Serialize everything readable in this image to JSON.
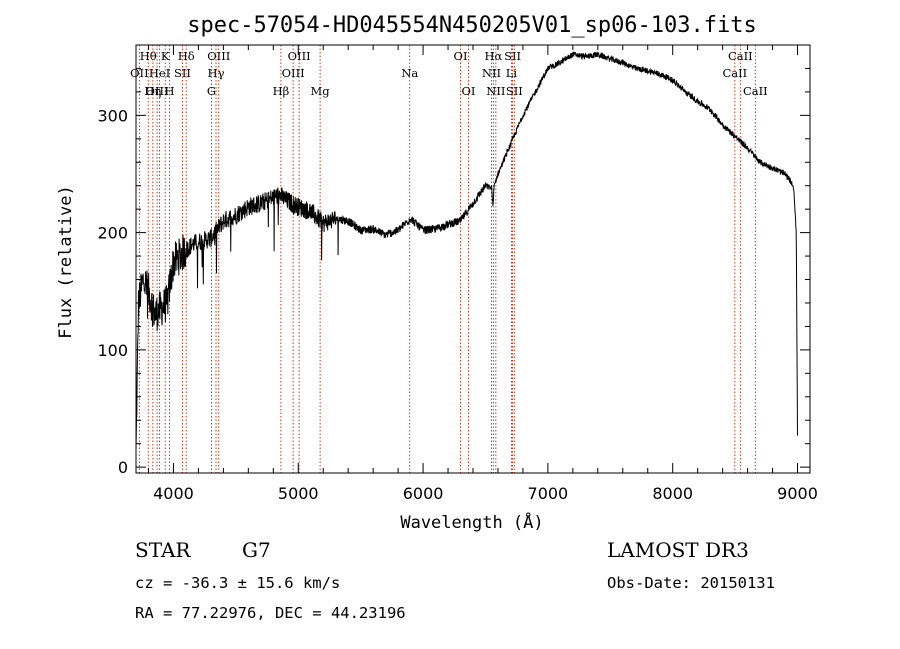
{
  "chart_data": {
    "type": "line",
    "title": "spec-57054-HD045554N450205V01_sp06-103.fits",
    "xlabel": "Wavelength (Å)",
    "ylabel": "Flux (relative)",
    "xlim": [
      3700,
      9100
    ],
    "ylim": [
      -5,
      360
    ],
    "xticks": [
      4000,
      5000,
      6000,
      7000,
      8000,
      9000
    ],
    "yticks": [
      0,
      100,
      200,
      300
    ],
    "grid": false,
    "series": [
      {
        "name": "spectrum",
        "x": [
          3700,
          3720,
          3760,
          3800,
          3850,
          3900,
          3950,
          4000,
          4050,
          4100,
          4150,
          4200,
          4300,
          4400,
          4500,
          4600,
          4700,
          4800,
          4850,
          4900,
          4950,
          5000,
          5100,
          5200,
          5300,
          5400,
          5500,
          5600,
          5700,
          5800,
          5900,
          6000,
          6100,
          6200,
          6300,
          6400,
          6500,
          6550,
          6560,
          6570,
          6600,
          6700,
          6800,
          6900,
          7000,
          7100,
          7200,
          7300,
          7400,
          7500,
          7600,
          7700,
          7800,
          7900,
          8000,
          8100,
          8200,
          8300,
          8400,
          8500,
          8600,
          8700,
          8800,
          8900,
          8950,
          8970,
          8990,
          9000
        ],
        "y": [
          10,
          140,
          160,
          150,
          130,
          135,
          140,
          175,
          180,
          185,
          190,
          192,
          195,
          210,
          215,
          222,
          225,
          230,
          232,
          228,
          225,
          222,
          218,
          208,
          212,
          210,
          202,
          203,
          198,
          202,
          212,
          202,
          203,
          207,
          210,
          225,
          240,
          238,
          222,
          240,
          250,
          275,
          300,
          320,
          340,
          345,
          352,
          350,
          352,
          348,
          345,
          340,
          338,
          335,
          330,
          320,
          312,
          305,
          292,
          282,
          272,
          260,
          255,
          250,
          243,
          238,
          200,
          25
        ]
      }
    ],
    "lines": [
      {
        "label": "Hθ",
        "x": 3798,
        "row": 1
      },
      {
        "label": "OII",
        "x": 3727,
        "row": 2
      },
      {
        "label": "OIII",
        "x": 3869,
        "row": 3
      },
      {
        "label": "HeI",
        "x": 3889,
        "row": 2
      },
      {
        "label": "Hη",
        "x": 3835,
        "row": 3
      },
      {
        "label": "K",
        "x": 3934,
        "row": 1
      },
      {
        "label": "SII",
        "x": 4072,
        "row": 2
      },
      {
        "label": "H",
        "x": 3969,
        "row": 3
      },
      {
        "label": "Hδ",
        "x": 4102,
        "row": 1
      },
      {
        "label": "OIII",
        "x": 4363,
        "row": 1
      },
      {
        "label": "Hγ",
        "x": 4341,
        "row": 2
      },
      {
        "label": "G",
        "x": 4305,
        "row": 3
      },
      {
        "label": "Hβ",
        "x": 4861,
        "row": 3
      },
      {
        "label": "OIII",
        "x": 5007,
        "row": 1
      },
      {
        "label": "OIII",
        "x": 4959,
        "row": 2
      },
      {
        "label": "Mg",
        "x": 5175,
        "row": 3
      },
      {
        "label": "Na",
        "x": 5893,
        "row": 2
      },
      {
        "label": "OI",
        "x": 6300,
        "row": 1
      },
      {
        "label": "OI",
        "x": 6364,
        "row": 3
      },
      {
        "label": "Hα",
        "x": 6563,
        "row": 1
      },
      {
        "label": "NII",
        "x": 6548,
        "row": 2
      },
      {
        "label": "NII",
        "x": 6583,
        "row": 3
      },
      {
        "label": "SII",
        "x": 6717,
        "row": 1
      },
      {
        "label": "Li",
        "x": 6708,
        "row": 2
      },
      {
        "label": "SII",
        "x": 6731,
        "row": 3
      },
      {
        "label": "CaII",
        "x": 8542,
        "row": 1
      },
      {
        "label": "CaII",
        "x": 8498,
        "row": 2
      },
      {
        "label": "CaII",
        "x": 8662,
        "row": 3
      }
    ]
  },
  "info": {
    "object_type": "STAR",
    "subclass": "G7",
    "survey": "LAMOST DR3",
    "cz": "cz = -36.3 ± 15.6 km/s",
    "obs_date": "Obs-Date: 20150131",
    "coords": "RA =  77.22976, DEC =  44.23196"
  },
  "colors": {
    "spectrum": "#000000",
    "line_marker": "#cc2200",
    "text": "#000000"
  }
}
